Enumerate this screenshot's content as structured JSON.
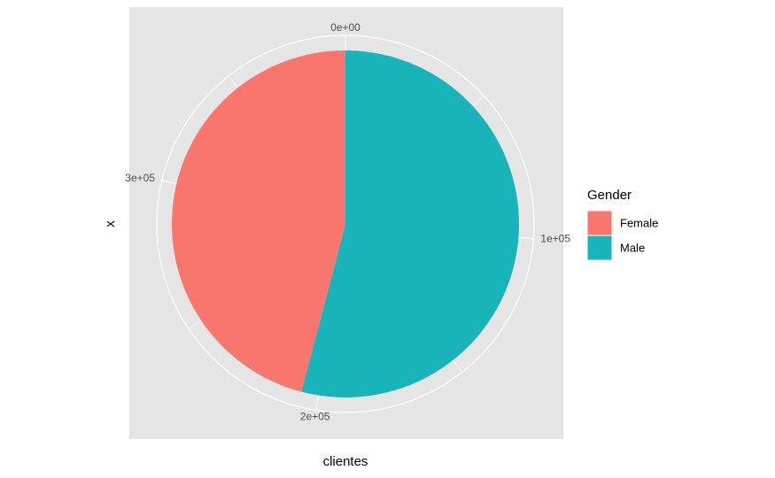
{
  "chart_data": {
    "type": "pie",
    "x_label": "clientes",
    "y_label": "x",
    "categories": [
      "Female",
      "Male"
    ],
    "values": [
      175020,
      206089
    ],
    "colors": [
      "#f8766d",
      "#19b4b9"
    ],
    "legend_title": "Gender",
    "xlim": [
      0,
      381109
    ],
    "xticks": [
      {
        "value": 0,
        "label": "0e+00"
      },
      {
        "value": 100000,
        "label": "1e+05"
      },
      {
        "value": 200000,
        "label": "2e+05"
      },
      {
        "value": 300000,
        "label": "3e+05"
      }
    ],
    "legend": "right"
  }
}
